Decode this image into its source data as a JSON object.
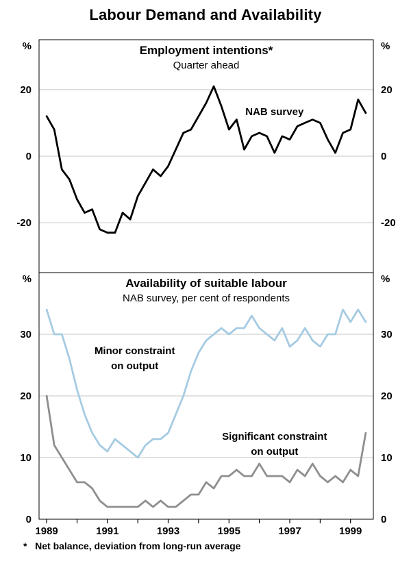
{
  "title": "Labour Demand and Availability",
  "footnote": "*   Net balance, deviation from long-run average",
  "x_axis": {
    "domain": [
      1988.75,
      1999.75
    ],
    "tick_years": [
      1989,
      1990,
      1991,
      1992,
      1993,
      1994,
      1995,
      1996,
      1997,
      1998,
      1999
    ],
    "label_years": [
      1989,
      1991,
      1993,
      1995,
      1997,
      1999
    ],
    "labels": [
      "1989",
      "1991",
      "1993",
      "1995",
      "1997",
      "1999"
    ]
  },
  "colors": {
    "black_line": "#000000",
    "light_blue_line": "#a5cbe2",
    "gray_line": "#8f8f8f",
    "gridline": "#c6c6c6",
    "frame": "#000000"
  },
  "chart_data": [
    {
      "type": "line",
      "panel": "top",
      "title": "Employment intentions*",
      "subtitle": "Quarter ahead",
      "unit": "%",
      "ylim": [
        -35,
        35
      ],
      "yticks": [
        20,
        0,
        -20
      ],
      "x_start": 1989.0,
      "x_step": 0.25,
      "series": [
        {
          "name": "NAB survey",
          "color": "#000000",
          "values": [
            12,
            8,
            -4,
            -7,
            -13,
            -17,
            -16,
            -22,
            -23,
            -23,
            -17,
            -19,
            -12,
            -8,
            -4,
            -6,
            -3,
            2,
            7,
            8,
            12,
            16,
            21,
            15,
            8,
            11,
            2,
            6,
            7,
            6,
            1,
            6,
            5,
            9,
            10,
            11,
            10,
            5,
            1,
            7,
            8,
            17,
            13
          ]
        }
      ],
      "annotations": [
        {
          "lines": [
            "NAB survey"
          ],
          "x": 1996.5,
          "y": 12.4
        }
      ]
    },
    {
      "type": "line",
      "panel": "bottom",
      "title": "Availability of suitable labour",
      "subtitle": "NAB survey, per cent of respondents",
      "unit": "%",
      "ylim": [
        0,
        40
      ],
      "yticks": [
        30,
        20,
        10,
        0
      ],
      "x_start": 1989.0,
      "x_step": 0.25,
      "series": [
        {
          "name": "Minor constraint on output",
          "color": "#a5cbe2",
          "values": [
            34,
            30,
            30,
            26,
            21,
            17,
            14,
            12,
            11,
            13,
            12,
            11,
            10,
            12,
            13,
            13,
            14,
            17,
            20,
            24,
            27,
            29,
            30,
            31,
            30,
            31,
            31,
            33,
            31,
            30,
            29,
            31,
            28,
            29,
            31,
            29,
            28,
            30,
            30,
            34,
            32,
            34,
            32
          ]
        },
        {
          "name": "Significant constraint on output",
          "color": "#8f8f8f",
          "values": [
            20,
            12,
            10,
            8,
            6,
            6,
            5,
            3,
            2,
            2,
            2,
            2,
            2,
            3,
            2,
            3,
            2,
            2,
            3,
            4,
            4,
            6,
            5,
            7,
            7,
            8,
            7,
            7,
            9,
            7,
            7,
            7,
            6,
            8,
            7,
            9,
            7,
            6,
            7,
            6,
            8,
            7,
            14
          ]
        }
      ],
      "annotations": [
        {
          "lines": [
            "Minor constraint",
            "on output"
          ],
          "x": 1991.9,
          "y": 26.8
        },
        {
          "lines": [
            "Significant constraint",
            "on output"
          ],
          "x": 1996.5,
          "y": 12.9
        }
      ]
    }
  ]
}
